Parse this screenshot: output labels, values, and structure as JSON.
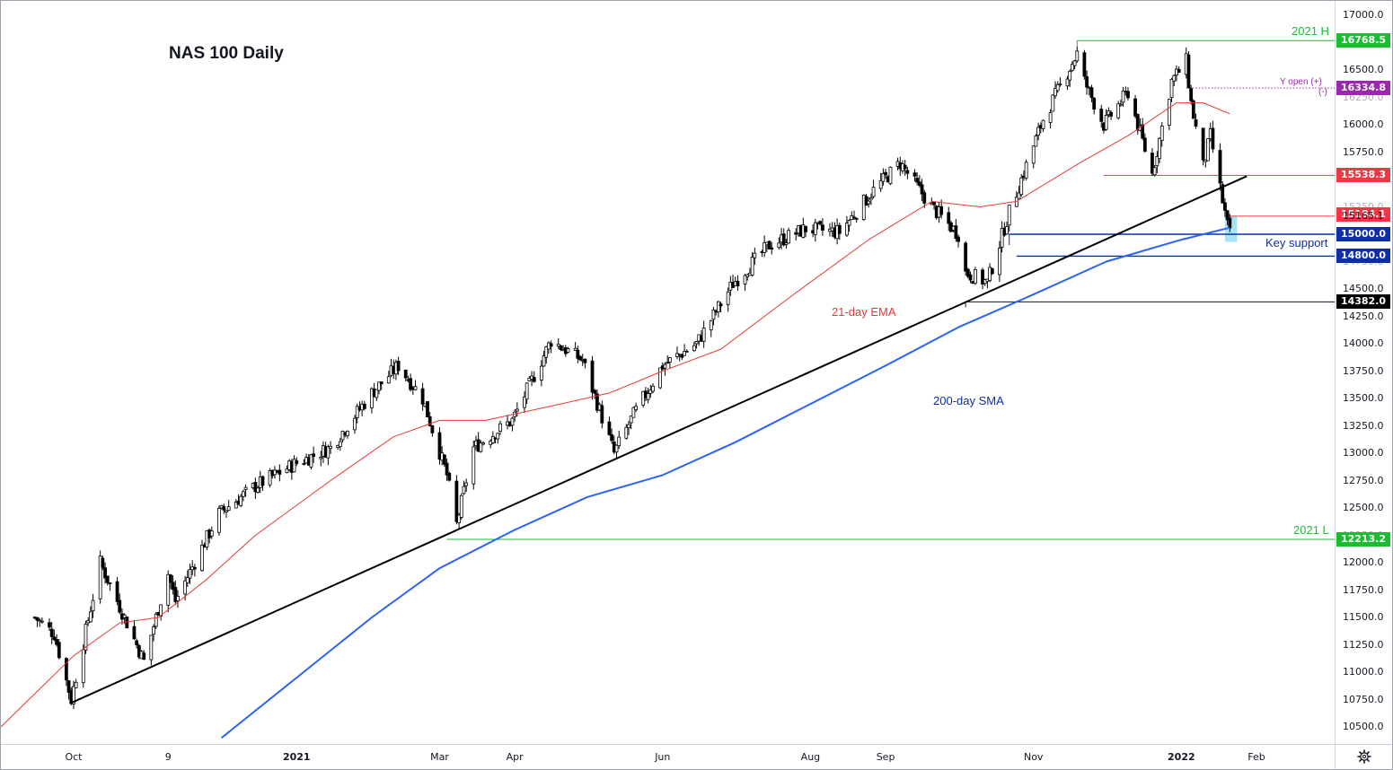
{
  "chart_title": "NAS 100 Daily",
  "annotations": {
    "high_label": "2021 H",
    "low_label": "2021 L",
    "y_open_plus": "Y open (+)",
    "y_open_minus": "(-)",
    "key_support": "Key support",
    "ema_label": "21-day EMA",
    "sma_label": "200-day SMA"
  },
  "colors": {
    "candle": "#000000",
    "ema": "#e53935",
    "sma": "#2962ff",
    "trendline": "#000000",
    "level_green": "#1cbc31",
    "level_red": "#f23645",
    "level_blue": "#0d2fa3",
    "level_purple": "#9c27b0",
    "support_box": "#5ad0e6"
  },
  "chart_data": {
    "type": "line",
    "title": "NAS 100 Daily",
    "xlabel": "",
    "ylabel": "",
    "ylim": [
      10300,
      17100
    ],
    "y_ticks": [
      "10500.0",
      "10750.0",
      "11000.0",
      "11250.0",
      "11500.0",
      "11750.0",
      "12000.0",
      "12250.0",
      "12500.0",
      "12750.0",
      "13000.0",
      "13250.0",
      "13500.0",
      "13750.0",
      "14000.0",
      "14250.0",
      "14500.0",
      "14750.0",
      "15000.0",
      "15250.0",
      "15500.0",
      "15750.0",
      "16000.0",
      "16250.0",
      "16500.0",
      "16750.0",
      "17000.0"
    ],
    "x_ticks": [
      {
        "label": "Oct",
        "date": "2020-10-01"
      },
      {
        "label": "9",
        "date": "2020-11-09"
      },
      {
        "label": "2021",
        "date": "2021-01-01"
      },
      {
        "label": "Mar",
        "date": "2021-03-01"
      },
      {
        "label": "Apr",
        "date": "2021-04-01"
      },
      {
        "label": "Jun",
        "date": "2021-06-01"
      },
      {
        "label": "Aug",
        "date": "2021-08-01"
      },
      {
        "label": "Sep",
        "date": "2021-09-01"
      },
      {
        "label": "Nov",
        "date": "2021-11-01"
      },
      {
        "label": "2022",
        "date": "2022-01-01"
      },
      {
        "label": "Feb",
        "date": "2022-02-01"
      }
    ],
    "series": [
      {
        "kind": "price",
        "x": [
          "2020-09-15",
          "2020-09-23",
          "2020-09-30",
          "2020-10-12",
          "2020-10-16",
          "2020-10-30",
          "2020-11-09",
          "2020-11-12",
          "2020-11-30",
          "2020-12-15",
          "2020-12-31",
          "2021-01-15",
          "2021-02-01",
          "2021-02-12",
          "2021-02-22",
          "2021-03-04",
          "2021-03-08",
          "2021-03-15",
          "2021-03-31",
          "2021-04-16",
          "2021-04-29",
          "2021-05-12",
          "2021-05-20",
          "2021-06-01",
          "2021-06-15",
          "2021-06-30",
          "2021-07-15",
          "2021-07-30",
          "2021-08-13",
          "2021-08-27",
          "2021-09-07",
          "2021-09-20",
          "2021-10-01",
          "2021-10-04",
          "2021-10-13",
          "2021-10-22",
          "2021-11-05",
          "2021-11-19",
          "2021-11-22",
          "2021-11-30",
          "2021-12-10",
          "2021-12-20",
          "2021-12-28",
          "2022-01-03",
          "2022-01-05",
          "2022-01-10",
          "2022-01-13",
          "2022-01-18",
          "2022-01-20",
          "2022-01-21"
        ],
        "y": [
          11500,
          11350,
          10750,
          12000,
          11800,
          11100,
          11900,
          11650,
          12450,
          12700,
          12900,
          13050,
          13550,
          13800,
          13500,
          12800,
          12350,
          13050,
          13300,
          14030,
          13850,
          13000,
          13350,
          13800,
          14000,
          14550,
          14900,
          15050,
          15020,
          15400,
          15650,
          15250,
          15000,
          14650,
          14560,
          15200,
          16050,
          16650,
          16400,
          16000,
          16300,
          15550,
          16400,
          16580,
          16200,
          15620,
          15900,
          15300,
          15080,
          15000
        ]
      },
      {
        "name": "21-day EMA",
        "x": [
          "2020-09-01",
          "2020-10-01",
          "2020-10-20",
          "2020-11-05",
          "2020-11-25",
          "2020-12-15",
          "2021-01-15",
          "2021-02-10",
          "2021-03-01",
          "2021-03-20",
          "2021-04-20",
          "2021-05-10",
          "2021-06-01",
          "2021-06-25",
          "2021-07-25",
          "2021-08-25",
          "2021-09-20",
          "2021-10-10",
          "2021-10-25",
          "2021-11-20",
          "2021-12-10",
          "2021-12-30",
          "2022-01-10",
          "2022-01-21"
        ],
        "y": [
          10500,
          11150,
          11450,
          11500,
          11850,
          12250,
          12750,
          13150,
          13300,
          13300,
          13450,
          13550,
          13750,
          13950,
          14450,
          14950,
          15300,
          15250,
          15300,
          15650,
          15900,
          16200,
          16200,
          16100
        ]
      },
      {
        "name": "200-day SMA",
        "x": [
          "2020-12-01",
          "2021-01-01",
          "2021-02-01",
          "2021-03-01",
          "2021-04-01",
          "2021-05-01",
          "2021-06-01",
          "2021-07-01",
          "2021-08-01",
          "2021-09-01",
          "2021-10-01",
          "2021-11-01",
          "2021-12-01",
          "2022-01-01",
          "2022-01-21"
        ],
        "y": [
          10400,
          10950,
          11500,
          11950,
          12300,
          12600,
          12800,
          13100,
          13450,
          13800,
          14150,
          14450,
          14750,
          14950,
          15060
        ]
      }
    ],
    "levels": [
      {
        "label": "16768.5",
        "value": 16768.5,
        "color": "#1cbc31",
        "style": "solid"
      },
      {
        "label": "16334.8",
        "value": 16334.8,
        "color": "#9c27b0",
        "style": "dotted"
      },
      {
        "label": "15538.3",
        "value": 15538.3,
        "color": "#f23645",
        "style": "solid"
      },
      {
        "label": "15184.1",
        "value": 15184.1,
        "color": "#f23645",
        "style": "solid"
      },
      {
        "label": "15165.1",
        "value": 15165.1,
        "color": "#f23645",
        "style": "solid"
      },
      {
        "label": "15000.0",
        "value": 15000.0,
        "color": "#0d2fa3",
        "style": "solid"
      },
      {
        "label": "14800.0",
        "value": 14800.0,
        "color": "#0d2fa3",
        "style": "solid"
      },
      {
        "label": "14382.0",
        "value": 14382.0,
        "color": "#131722",
        "style": "solid"
      },
      {
        "label": "12213.2",
        "value": 12213.2,
        "color": "#1cbc31",
        "style": "solid"
      }
    ],
    "trendline": {
      "x": [
        "2020-09-30",
        "2022-01-28"
      ],
      "y": [
        10720,
        15530
      ]
    },
    "grid": false,
    "legend": "none"
  }
}
